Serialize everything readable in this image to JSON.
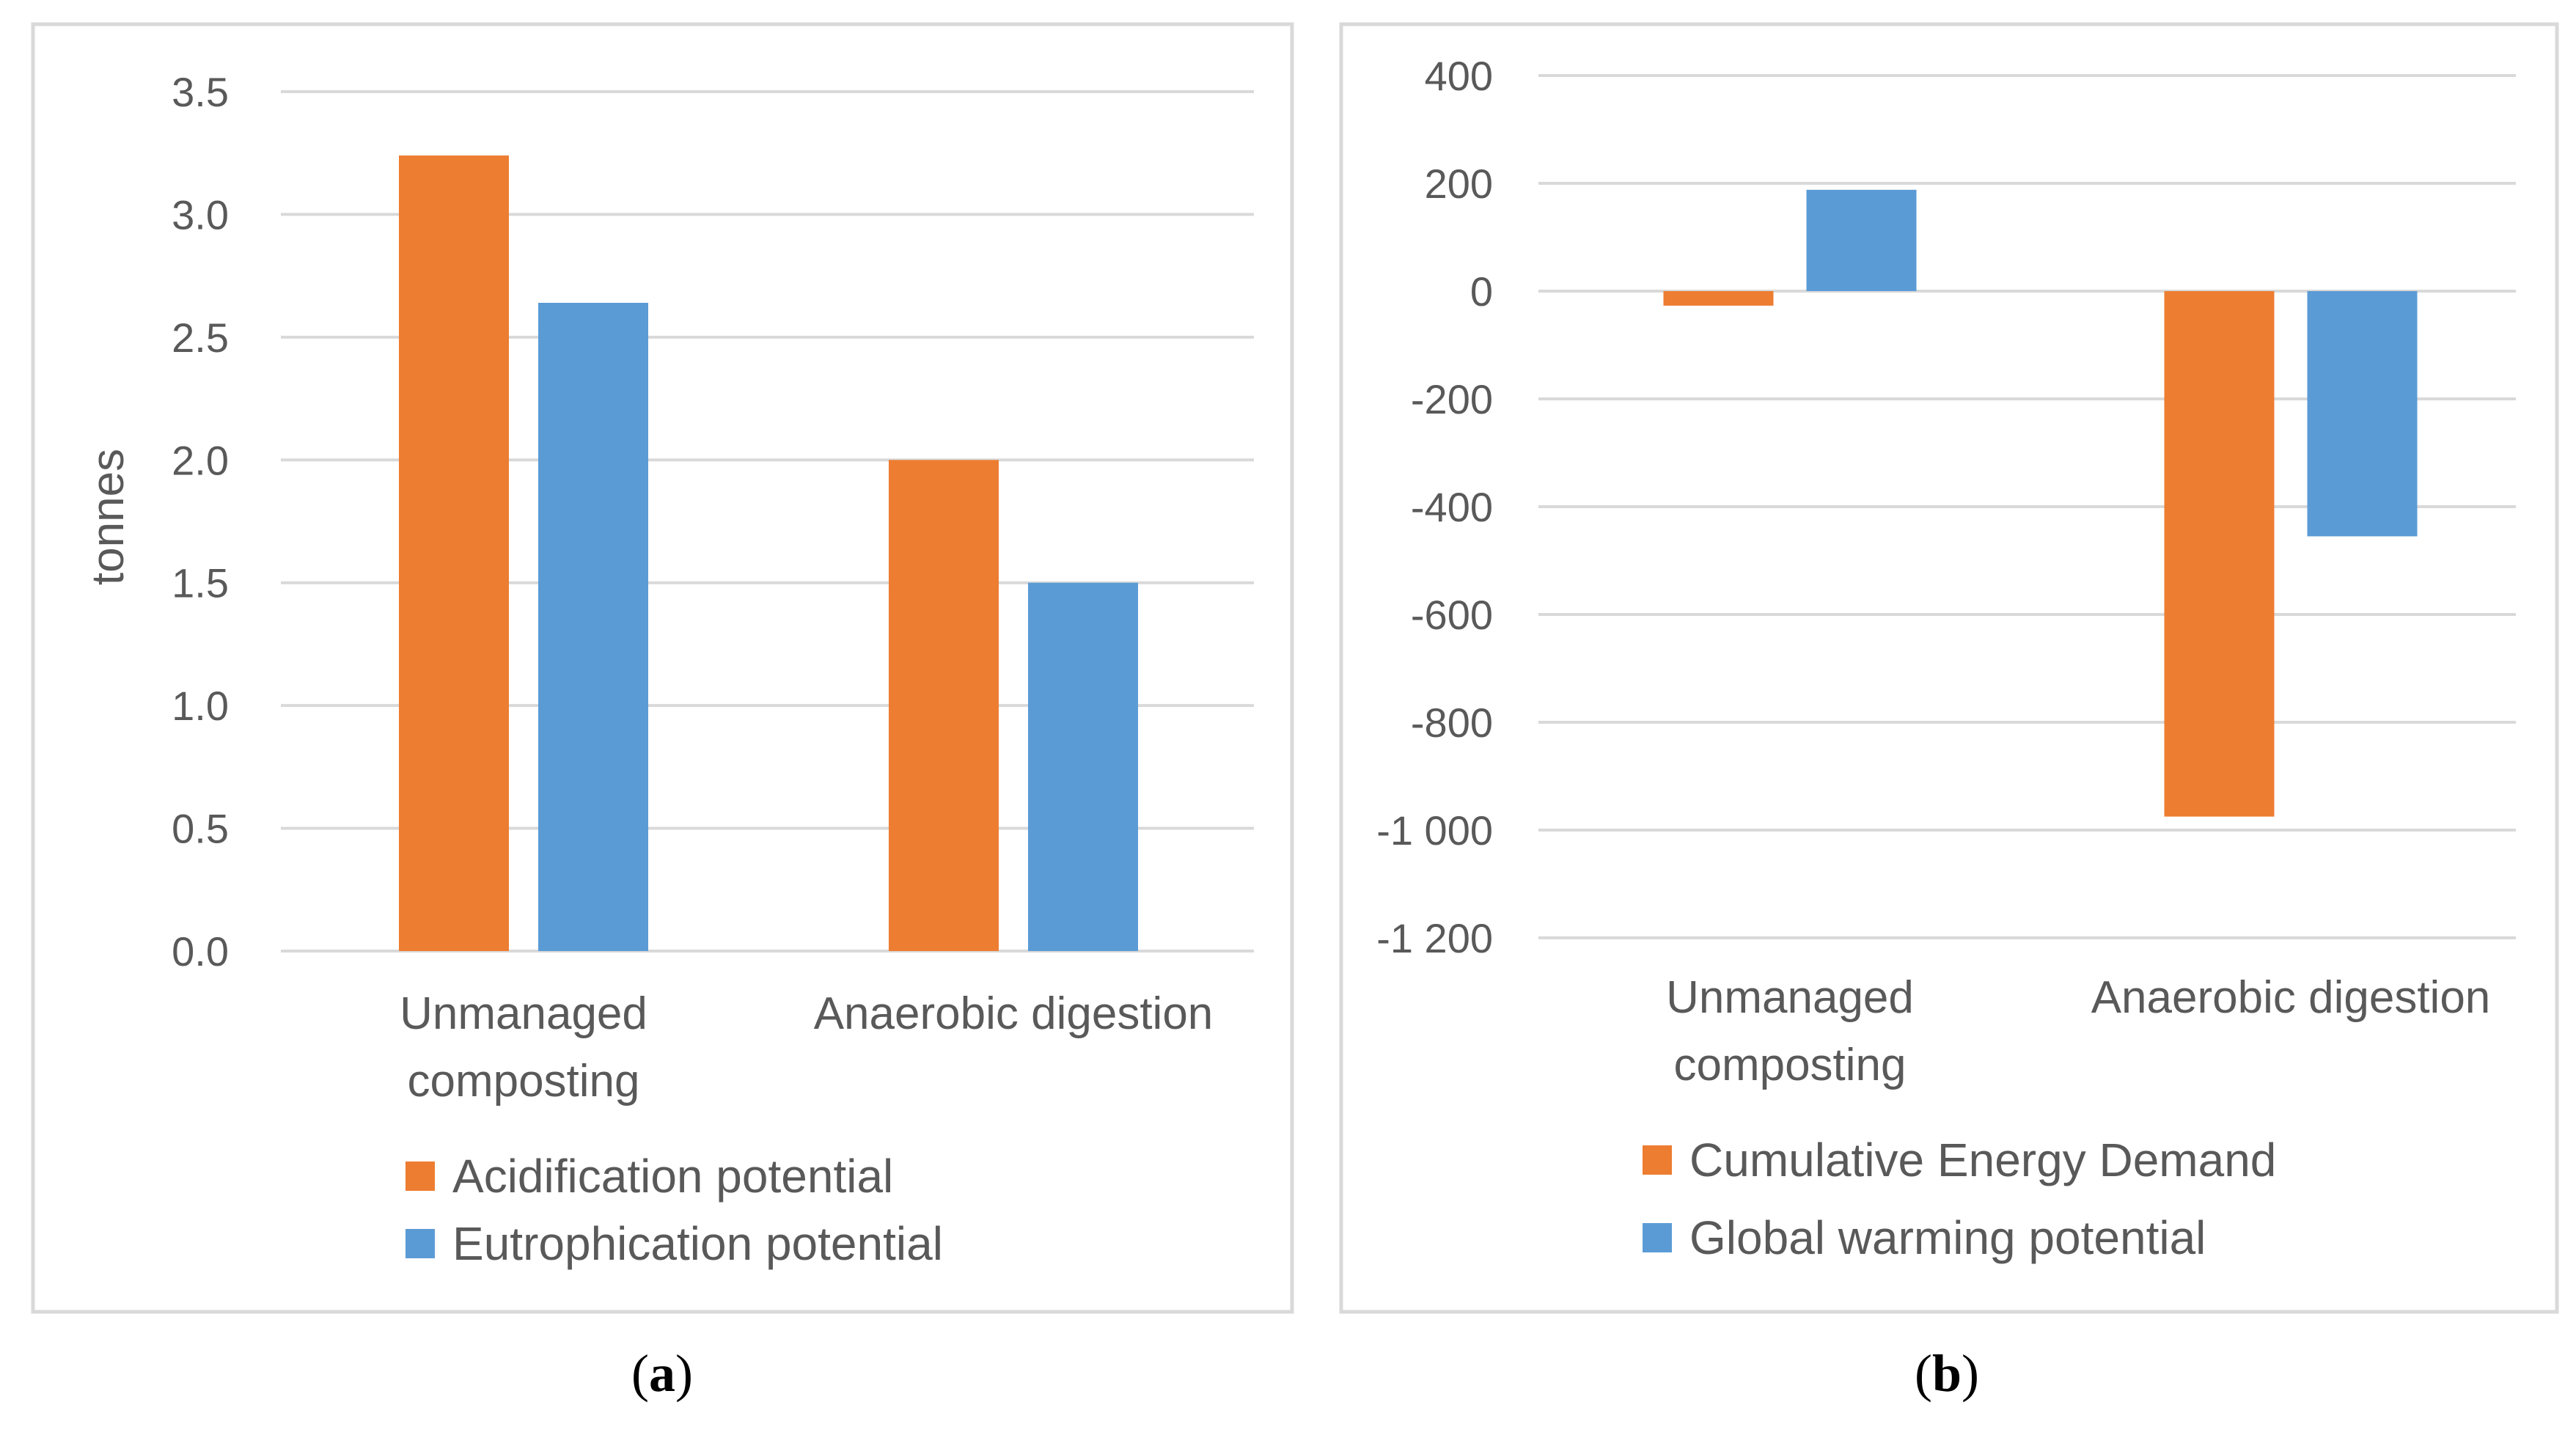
{
  "colors": {
    "series_orange": "#ED7D31",
    "series_blue": "#5B9BD5",
    "grid": "#D9D9D9",
    "frame": "#D9D9D9",
    "text": "#595959"
  },
  "chart_data": [
    {
      "type": "bar",
      "caption_letter": "a",
      "categories": [
        "Unmanaged composting",
        "Anaerobic digestion"
      ],
      "category_lines": [
        [
          "Unmanaged",
          "composting"
        ],
        [
          "Anaerobic digestion"
        ]
      ],
      "series": [
        {
          "name": "Acidification potential",
          "color": "#ED7D31",
          "values": [
            3.24,
            2.0
          ]
        },
        {
          "name": "Eutrophication potential",
          "color": "#5B9BD5",
          "values": [
            2.64,
            1.5
          ]
        }
      ],
      "ylabel": "tonnes",
      "xlabel": "",
      "ylim": [
        0,
        3.5
      ],
      "yticks": [
        0,
        0.5,
        1.0,
        1.5,
        2.0,
        2.5,
        3.0,
        3.5
      ],
      "ytick_labels": [
        "0.0",
        "0.5",
        "1.0",
        "1.5",
        "2.0",
        "2.5",
        "3.0",
        "3.5"
      ],
      "grid": true,
      "legend_position": "bottom"
    },
    {
      "type": "bar",
      "caption_letter": "b",
      "categories": [
        "Unmanaged composting",
        "Anaerobic digestion"
      ],
      "category_lines": [
        [
          "Unmanaged",
          "composting"
        ],
        [
          "Anaerobic digestion"
        ]
      ],
      "series": [
        {
          "name": "Cumulative Energy Demand",
          "color": "#ED7D31",
          "values": [
            -27,
            -975
          ]
        },
        {
          "name": "Global warming potential",
          "color": "#5B9BD5",
          "values": [
            188,
            -455
          ]
        }
      ],
      "ylabel": "",
      "xlabel": "",
      "ylim": [
        -1200,
        400
      ],
      "yticks": [
        400,
        200,
        0,
        -200,
        -400,
        -600,
        -800,
        -1000,
        -1200
      ],
      "ytick_labels": [
        "400",
        "200",
        "0",
        "-200",
        "-400",
        "-600",
        "-800",
        "-1 000",
        "-1 200"
      ],
      "grid": true,
      "legend_position": "bottom"
    }
  ]
}
